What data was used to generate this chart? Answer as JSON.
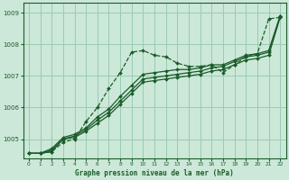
{
  "title": "Graphe pression niveau de la mer (hPa)",
  "background_color": "#cce8d8",
  "grid_color": "#99ccb3",
  "line_color": "#1a5c2a",
  "xlim": [
    -0.5,
    22.5
  ],
  "ylim": [
    1004.4,
    1009.3
  ],
  "yticks": [
    1005,
    1006,
    1007,
    1008,
    1009
  ],
  "xticks": [
    0,
    1,
    2,
    3,
    4,
    5,
    6,
    7,
    8,
    9,
    10,
    11,
    12,
    13,
    14,
    15,
    16,
    17,
    18,
    19,
    20,
    21,
    22
  ],
  "series": [
    {
      "y": [
        1004.55,
        1004.55,
        1004.6,
        1004.9,
        1005.0,
        1005.55,
        1006.0,
        1006.6,
        1007.1,
        1007.75,
        1007.8,
        1007.65,
        1007.6,
        1007.4,
        1007.3,
        1007.3,
        1007.35,
        1007.1,
        1007.35,
        1007.6,
        1007.7,
        1008.8,
        1008.85
      ],
      "linestyle": "--",
      "marker": "D",
      "markersize": 2.0,
      "linewidth": 0.9
    },
    {
      "y": [
        1004.55,
        1004.55,
        1004.6,
        1005.0,
        1005.05,
        1005.25,
        1005.5,
        1005.75,
        1006.1,
        1006.45,
        1006.8,
        1006.85,
        1006.9,
        1006.95,
        1007.0,
        1007.05,
        1007.15,
        1007.2,
        1007.35,
        1007.5,
        1007.55,
        1007.65,
        1008.85
      ],
      "linestyle": "-",
      "marker": "D",
      "markersize": 2.0,
      "linewidth": 0.9
    },
    {
      "y": [
        1004.55,
        1004.55,
        1004.65,
        1005.0,
        1005.1,
        1005.3,
        1005.6,
        1005.85,
        1006.2,
        1006.55,
        1006.9,
        1006.95,
        1007.0,
        1007.05,
        1007.1,
        1007.15,
        1007.25,
        1007.3,
        1007.45,
        1007.6,
        1007.65,
        1007.75,
        1008.9
      ],
      "linestyle": "-",
      "marker": "D",
      "markersize": 2.0,
      "linewidth": 0.9
    },
    {
      "y": [
        1004.55,
        1004.55,
        1004.7,
        1005.05,
        1005.15,
        1005.35,
        1005.7,
        1005.95,
        1006.35,
        1006.7,
        1007.05,
        1007.1,
        1007.15,
        1007.2,
        1007.2,
        1007.25,
        1007.35,
        1007.35,
        1007.5,
        1007.65,
        1007.7,
        1007.8,
        1008.9
      ],
      "linestyle": "-",
      "marker": "D",
      "markersize": 2.0,
      "linewidth": 0.9
    }
  ]
}
